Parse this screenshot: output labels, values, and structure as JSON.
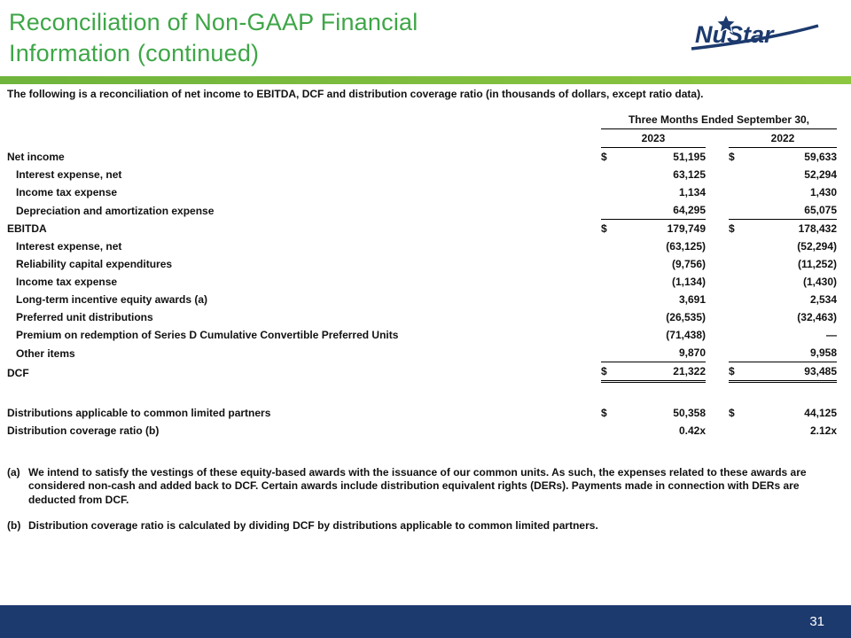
{
  "slide": {
    "title_line1": "Reconciliation of Non-GAAP Financial",
    "title_line2": "Information (continued)",
    "logo_text": "NuStar",
    "page_number": "31"
  },
  "colors": {
    "title_green": "#3EA647",
    "bar_green": "#8DC63F",
    "navy": "#1C3A6E",
    "text": "#111111"
  },
  "intro": "The following is a reconciliation of net income to EBITDA, DCF and distribution coverage ratio (in thousands of dollars, except ratio data).",
  "table": {
    "header": {
      "period": "Three Months Ended September 30,",
      "col1": "2023",
      "col2": "2022"
    },
    "rows": [
      {
        "label": "Net income",
        "indent": false,
        "d1": "$",
        "v1": "51,195",
        "d2": "$",
        "v2": "59,633",
        "rule": "none"
      },
      {
        "label": "Interest expense, net",
        "indent": true,
        "d1": "",
        "v1": "63,125",
        "d2": "",
        "v2": "52,294",
        "rule": "none"
      },
      {
        "label": "Income tax expense",
        "indent": true,
        "d1": "",
        "v1": "1,134",
        "d2": "",
        "v2": "1,430",
        "rule": "none"
      },
      {
        "label": "Depreciation and amortization expense",
        "indent": true,
        "d1": "",
        "v1": "64,295",
        "d2": "",
        "v2": "65,075",
        "rule": "bottom"
      },
      {
        "label": "EBITDA",
        "indent": false,
        "d1": "$",
        "v1": "179,749",
        "d2": "$",
        "v2": "178,432",
        "rule": "none"
      },
      {
        "label": "Interest expense, net",
        "indent": true,
        "d1": "",
        "v1": "(63,125)",
        "d2": "",
        "v2": "(52,294)",
        "rule": "none"
      },
      {
        "label": "Reliability capital expenditures",
        "indent": true,
        "d1": "",
        "v1": "(9,756)",
        "d2": "",
        "v2": "(11,252)",
        "rule": "none"
      },
      {
        "label": "Income tax expense",
        "indent": true,
        "d1": "",
        "v1": "(1,134)",
        "d2": "",
        "v2": "(1,430)",
        "rule": "none"
      },
      {
        "label": "Long-term incentive equity awards (a)",
        "indent": true,
        "d1": "",
        "v1": "3,691",
        "d2": "",
        "v2": "2,534",
        "rule": "none"
      },
      {
        "label": "Preferred unit distributions",
        "indent": true,
        "d1": "",
        "v1": "(26,535)",
        "d2": "",
        "v2": "(32,463)",
        "rule": "none"
      },
      {
        "label": "Premium on redemption of Series D Cumulative Convertible Preferred Units",
        "indent": true,
        "d1": "",
        "v1": "(71,438)",
        "d2": "",
        "v2": "—",
        "rule": "none"
      },
      {
        "label": "Other items",
        "indent": true,
        "d1": "",
        "v1": "9,870",
        "d2": "",
        "v2": "9,958",
        "rule": "bottom"
      },
      {
        "label": "DCF",
        "indent": false,
        "d1": "$",
        "v1": "21,322",
        "d2": "$",
        "v2": "93,485",
        "rule": "double"
      },
      {
        "spacer": true
      },
      {
        "label": "Distributions applicable to common limited partners",
        "indent": false,
        "d1": "$",
        "v1": "50,358",
        "d2": "$",
        "v2": "44,125",
        "rule": "none"
      },
      {
        "label": "Distribution coverage ratio (b)",
        "indent": false,
        "d1": "",
        "v1": "0.42x",
        "d2": "",
        "v2": "2.12x",
        "rule": "none"
      }
    ]
  },
  "footnotes": [
    {
      "marker": "(a)",
      "text": "We intend to satisfy the vestings of these equity-based awards with the issuance of our common units. As such, the expenses related to these awards are considered non-cash and added back to DCF. Certain awards include distribution equivalent rights (DERs). Payments made in connection with DERs are deducted from DCF."
    },
    {
      "marker": "(b)",
      "text": "Distribution coverage ratio is calculated by dividing DCF by distributions applicable to common limited partners."
    }
  ]
}
